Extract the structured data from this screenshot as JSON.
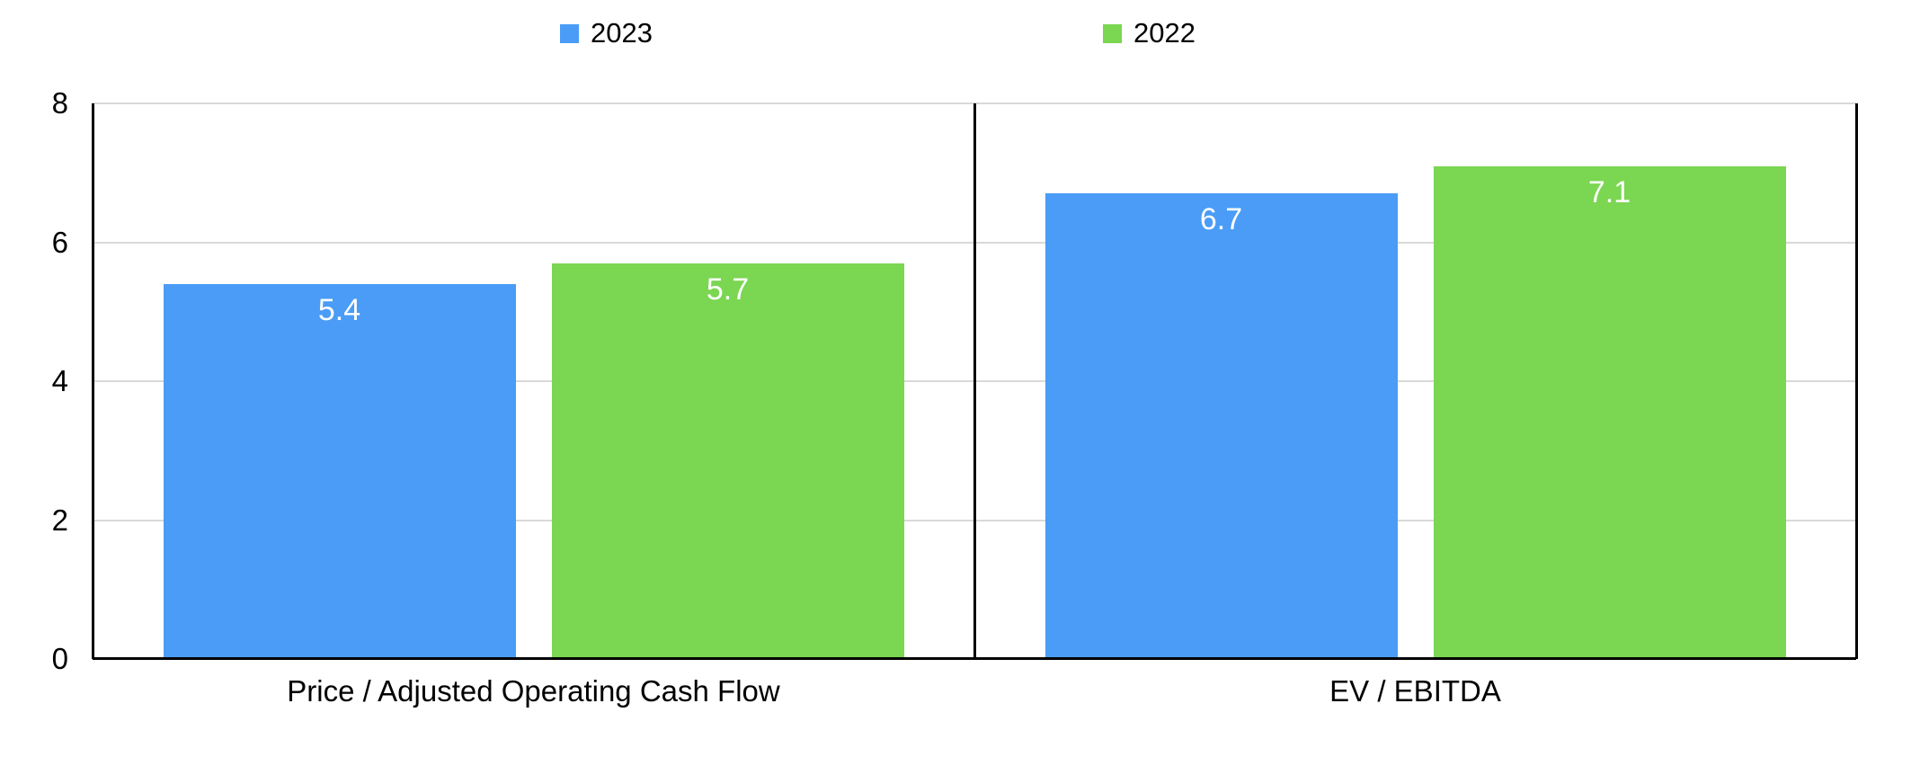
{
  "chart_data": {
    "type": "bar",
    "title": "",
    "xlabel": "",
    "ylabel": "",
    "categories": [
      "Price / Adjusted Operating Cash Flow",
      "EV / EBITDA"
    ],
    "series": [
      {
        "name": "2023",
        "color": "#4A9CF6",
        "values": [
          5.4,
          6.7
        ],
        "labels": [
          "5.4",
          "6.7"
        ]
      },
      {
        "name": "2022",
        "color": "#7BD652",
        "values": [
          5.7,
          7.1
        ],
        "labels": [
          "5.7",
          "7.1"
        ]
      }
    ],
    "ylim": [
      0,
      8
    ],
    "yticks": [
      "0",
      "2",
      "4",
      "6",
      "8"
    ],
    "grid": true,
    "legend_position": "top",
    "colors": {
      "background": "#FFFFFF",
      "text": "#000000",
      "axis_line": "#000000",
      "gridline": "#D9D9D9",
      "value_label": "#FFFFFF"
    }
  }
}
